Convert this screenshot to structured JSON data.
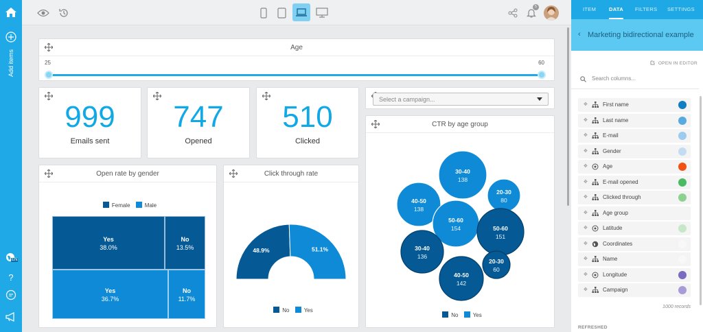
{
  "sidebar": {
    "add_items_label": "Add items",
    "language": "EN"
  },
  "toolbar": {
    "device_active": "laptop",
    "notif_count": "5"
  },
  "age_filter": {
    "title": "Age",
    "min": 25,
    "max": 60,
    "min_label": "25",
    "max_label": "60"
  },
  "kpis": [
    {
      "value": "999",
      "label": "Emails sent"
    },
    {
      "value": "747",
      "label": "Opened"
    },
    {
      "value": "510",
      "label": "Clicked"
    }
  ],
  "campaign_select": {
    "placeholder": "Select a campaign..."
  },
  "open_rate": {
    "title": "Open rate by gender",
    "legend": [
      "Female",
      "Male"
    ],
    "colors": {
      "female": "#055a96",
      "male": "#0f8ad7"
    },
    "cells": [
      {
        "label": "Yes",
        "value": "38.0%"
      },
      {
        "label": "No",
        "value": "13.5%"
      },
      {
        "label": "Yes",
        "value": "36.7%"
      },
      {
        "label": "No",
        "value": "11.7%"
      }
    ]
  },
  "ctr": {
    "title": "Click through rate",
    "legend": [
      "No",
      "Yes"
    ],
    "chart_data": {
      "type": "pie",
      "categories": [
        "No",
        "Yes"
      ],
      "values": [
        48.9,
        51.1
      ],
      "labels": [
        "48.9%",
        "51.1%"
      ]
    }
  },
  "ctr_age": {
    "title": "CTR by age group",
    "legend": [
      "No",
      "Yes"
    ],
    "bubbles": [
      {
        "group": "30-40",
        "value": "138",
        "series": "Yes"
      },
      {
        "group": "40-50",
        "value": "138",
        "series": "Yes"
      },
      {
        "group": "20-30",
        "value": "80",
        "series": "Yes"
      },
      {
        "group": "50-60",
        "value": "154",
        "series": "Yes"
      },
      {
        "group": "50-60",
        "value": "151",
        "series": "No"
      },
      {
        "group": "30-40",
        "value": "136",
        "series": "No"
      },
      {
        "group": "40-50",
        "value": "142",
        "series": "No"
      },
      {
        "group": "20-30",
        "value": "60",
        "series": "No"
      }
    ]
  },
  "right_panel": {
    "tabs": [
      "ITEM",
      "DATA",
      "FILTERS",
      "SETTINGS"
    ],
    "active_tab": "DATA",
    "dataset_title": "Marketing bidirectional example",
    "open_in_editor": "OPEN IN EDITOR",
    "search_placeholder": "Search columns...",
    "columns": [
      {
        "name": "First name",
        "type": "hierarchy",
        "color": "#0f7ec2"
      },
      {
        "name": "Last name",
        "type": "hierarchy",
        "color": "#57a9e0"
      },
      {
        "name": "E-mail",
        "type": "hierarchy",
        "color": "#9dcbee"
      },
      {
        "name": "Gender",
        "type": "hierarchy",
        "color": "#c3dcf1"
      },
      {
        "name": "Age",
        "type": "numeric",
        "color": "#f24f12"
      },
      {
        "name": "E-mail opened",
        "type": "hierarchy",
        "color": "#4cb963"
      },
      {
        "name": "Clicked through",
        "type": "hierarchy",
        "color": "#8ed18f"
      },
      {
        "name": "Age group",
        "type": "hierarchy",
        "color": "#f4f4f5"
      },
      {
        "name": "Latitude",
        "type": "numeric",
        "color": "#c7e8c6"
      },
      {
        "name": "Coordinates",
        "type": "geo",
        "color": "#f8f8f8"
      },
      {
        "name": "Name",
        "type": "hierarchy",
        "color": "#f8f8f8"
      },
      {
        "name": "Longitude",
        "type": "numeric",
        "color": "#7a6bbf"
      },
      {
        "name": "Campaign",
        "type": "hierarchy",
        "color": "#a89bd8"
      }
    ],
    "records": "1000 records",
    "refreshed": "REFRESHED"
  }
}
